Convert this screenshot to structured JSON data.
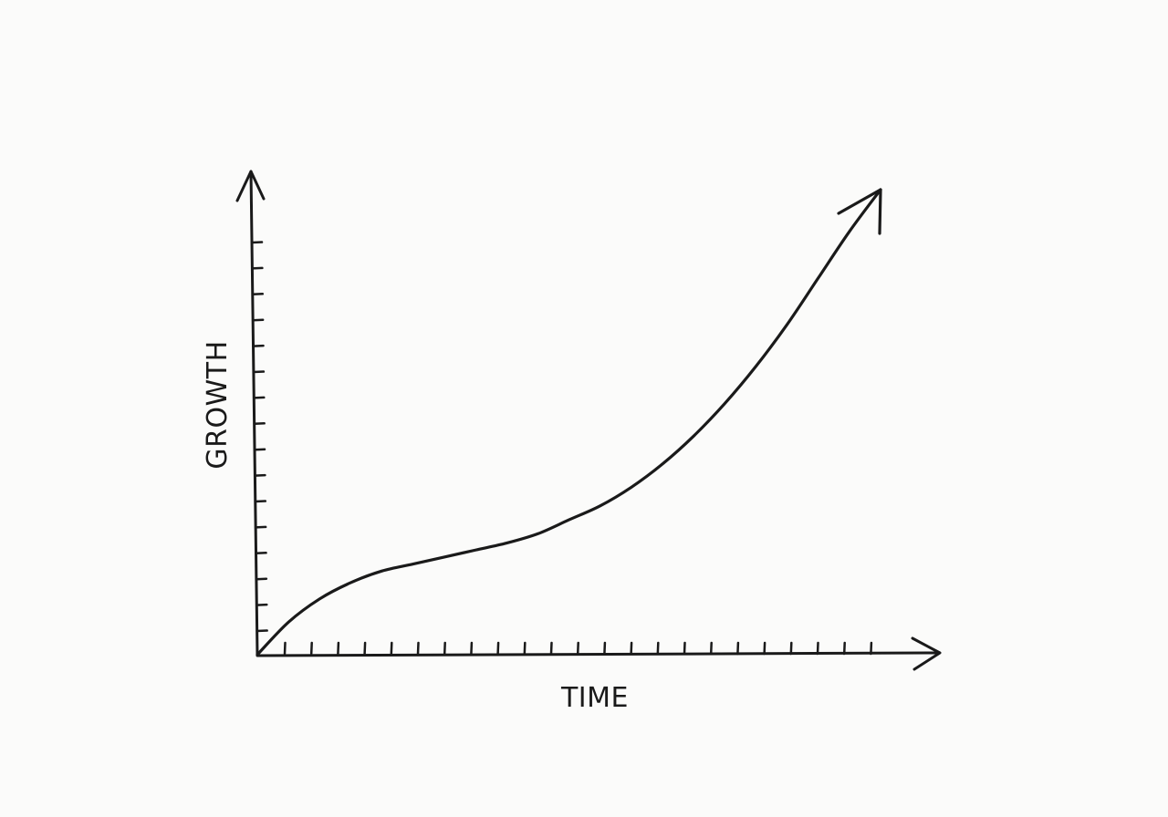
{
  "chart_data": {
    "type": "line",
    "title": "",
    "xlabel": "TIME",
    "ylabel": "GROWTH",
    "grid": false,
    "legend": "none",
    "ink_color": "#1a1a1a",
    "background_color": "#fbfbfa",
    "x_tick_count": 23,
    "y_tick_count": 16,
    "series": [
      {
        "x": [
          0,
          0.05,
          0.1,
          0.15,
          0.2,
          0.25,
          0.3,
          0.35,
          0.4,
          0.45,
          0.5,
          0.55,
          0.6,
          0.65,
          0.7,
          0.75,
          0.8,
          0.85,
          0.9,
          0.95,
          1.0
        ],
        "values": [
          0,
          0.07,
          0.12,
          0.155,
          0.18,
          0.195,
          0.21,
          0.225,
          0.24,
          0.26,
          0.29,
          0.32,
          0.36,
          0.41,
          0.47,
          0.54,
          0.62,
          0.71,
          0.81,
          0.91,
          1.0
        ]
      }
    ]
  }
}
